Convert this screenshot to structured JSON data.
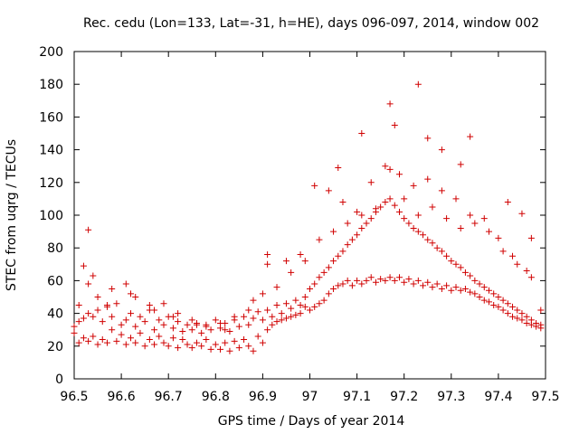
{
  "chart_data": {
    "type": "scatter",
    "title": "Rec. cedu (Lon=133, Lat=-31, h=HE), days 096-097, 2014, window 002",
    "xlabel": "GPS time / Days of year 2014",
    "ylabel": "STEC from uqrg / TECUs",
    "xlim": [
      96.5,
      97.5
    ],
    "ylim": [
      0,
      200
    ],
    "xticks": [
      "96.5",
      "96.6",
      "96.7",
      "96.8",
      "96.9",
      "97",
      "97.1",
      "97.2",
      "97.3",
      "97.4",
      "97.5"
    ],
    "yticks": [
      "0",
      "20",
      "40",
      "60",
      "80",
      "100",
      "120",
      "140",
      "160",
      "180",
      "200"
    ],
    "grid": false,
    "marker": "+",
    "color": "#d00000",
    "series": [
      {
        "name": "STEC",
        "points": [
          [
            96.5,
            32
          ],
          [
            96.5,
            28
          ],
          [
            96.51,
            35
          ],
          [
            96.51,
            22
          ],
          [
            96.52,
            37
          ],
          [
            96.52,
            25
          ],
          [
            96.53,
            40
          ],
          [
            96.53,
            23
          ],
          [
            96.54,
            38
          ],
          [
            96.54,
            26
          ],
          [
            96.55,
            42
          ],
          [
            96.55,
            21
          ],
          [
            96.56,
            35
          ],
          [
            96.56,
            24
          ],
          [
            96.57,
            44
          ],
          [
            96.57,
            22
          ],
          [
            96.58,
            38
          ],
          [
            96.58,
            30
          ],
          [
            96.59,
            46
          ],
          [
            96.59,
            23
          ],
          [
            96.6,
            33
          ],
          [
            96.6,
            27
          ],
          [
            96.61,
            36
          ],
          [
            96.61,
            21
          ],
          [
            96.62,
            40
          ],
          [
            96.62,
            25
          ],
          [
            96.63,
            32
          ],
          [
            96.63,
            22
          ],
          [
            96.64,
            38
          ],
          [
            96.64,
            28
          ],
          [
            96.65,
            35
          ],
          [
            96.65,
            20
          ],
          [
            96.66,
            42
          ],
          [
            96.66,
            24
          ],
          [
            96.67,
            30
          ],
          [
            96.67,
            21
          ],
          [
            96.68,
            36
          ],
          [
            96.68,
            26
          ],
          [
            96.69,
            33
          ],
          [
            96.69,
            22
          ],
          [
            96.7,
            38
          ],
          [
            96.7,
            20
          ],
          [
            96.71,
            31
          ],
          [
            96.71,
            25
          ],
          [
            96.72,
            35
          ],
          [
            96.72,
            19
          ],
          [
            96.73,
            29
          ],
          [
            96.73,
            24
          ],
          [
            96.74,
            33
          ],
          [
            96.74,
            21
          ],
          [
            96.75,
            30
          ],
          [
            96.75,
            19
          ],
          [
            96.76,
            34
          ],
          [
            96.76,
            22
          ],
          [
            96.77,
            28
          ],
          [
            96.77,
            20
          ],
          [
            96.78,
            33
          ],
          [
            96.78,
            24
          ],
          [
            96.79,
            30
          ],
          [
            96.79,
            18
          ],
          [
            96.8,
            36
          ],
          [
            96.8,
            21
          ],
          [
            96.81,
            31
          ],
          [
            96.81,
            18
          ],
          [
            96.82,
            34
          ],
          [
            96.82,
            22
          ],
          [
            96.83,
            29
          ],
          [
            96.83,
            17
          ],
          [
            96.84,
            36
          ],
          [
            96.84,
            23
          ],
          [
            96.85,
            32
          ],
          [
            96.85,
            19
          ],
          [
            96.86,
            38
          ],
          [
            96.86,
            24
          ],
          [
            96.87,
            33
          ],
          [
            96.87,
            20
          ],
          [
            96.88,
            37
          ],
          [
            96.88,
            17
          ],
          [
            96.89,
            41
          ],
          [
            96.89,
            26
          ],
          [
            96.9,
            36
          ],
          [
            96.9,
            22
          ],
          [
            96.91,
            42
          ],
          [
            96.91,
            30
          ],
          [
            96.92,
            38
          ],
          [
            96.92,
            33
          ],
          [
            96.93,
            45
          ],
          [
            96.93,
            35
          ],
          [
            96.94,
            40
          ],
          [
            96.94,
            36
          ],
          [
            96.95,
            46
          ],
          [
            96.95,
            37
          ],
          [
            96.96,
            43
          ],
          [
            96.96,
            38
          ],
          [
            96.97,
            48
          ],
          [
            96.97,
            39
          ],
          [
            96.98,
            45
          ],
          [
            96.98,
            40
          ],
          [
            96.99,
            50
          ],
          [
            96.99,
            44
          ],
          [
            97.0,
            55
          ],
          [
            97.0,
            42
          ],
          [
            97.01,
            58
          ],
          [
            97.01,
            44
          ],
          [
            97.02,
            62
          ],
          [
            97.02,
            46
          ],
          [
            97.03,
            65
          ],
          [
            97.03,
            48
          ],
          [
            97.04,
            68
          ],
          [
            97.04,
            52
          ],
          [
            97.05,
            72
          ],
          [
            97.05,
            55
          ],
          [
            97.06,
            75
          ],
          [
            97.06,
            57
          ],
          [
            97.07,
            78
          ],
          [
            97.07,
            58
          ],
          [
            97.08,
            82
          ],
          [
            97.08,
            60
          ],
          [
            97.09,
            85
          ],
          [
            97.09,
            57
          ],
          [
            97.1,
            88
          ],
          [
            97.1,
            60
          ],
          [
            97.11,
            92
          ],
          [
            97.11,
            58
          ],
          [
            97.12,
            95
          ],
          [
            97.12,
            60
          ],
          [
            97.13,
            98
          ],
          [
            97.13,
            62
          ],
          [
            97.14,
            102
          ],
          [
            97.14,
            59
          ],
          [
            97.15,
            105
          ],
          [
            97.15,
            61
          ],
          [
            97.16,
            108
          ],
          [
            97.16,
            60
          ],
          [
            97.17,
            110
          ],
          [
            97.17,
            62
          ],
          [
            97.18,
            106
          ],
          [
            97.18,
            60
          ],
          [
            97.19,
            102
          ],
          [
            97.19,
            62
          ],
          [
            97.2,
            98
          ],
          [
            97.2,
            59
          ],
          [
            97.21,
            95
          ],
          [
            97.21,
            61
          ],
          [
            97.22,
            92
          ],
          [
            97.22,
            58
          ],
          [
            97.23,
            90
          ],
          [
            97.23,
            60
          ],
          [
            97.24,
            88
          ],
          [
            97.24,
            57
          ],
          [
            97.25,
            85
          ],
          [
            97.25,
            59
          ],
          [
            97.26,
            83
          ],
          [
            97.26,
            56
          ],
          [
            97.27,
            80
          ],
          [
            97.27,
            58
          ],
          [
            97.28,
            78
          ],
          [
            97.28,
            55
          ],
          [
            97.29,
            75
          ],
          [
            97.29,
            57
          ],
          [
            97.3,
            72
          ],
          [
            97.3,
            54
          ],
          [
            97.31,
            70
          ],
          [
            97.31,
            56
          ],
          [
            97.32,
            68
          ],
          [
            97.32,
            54
          ],
          [
            97.33,
            65
          ],
          [
            97.33,
            55
          ],
          [
            97.34,
            63
          ],
          [
            97.34,
            53
          ],
          [
            97.35,
            60
          ],
          [
            97.35,
            52
          ],
          [
            97.36,
            58
          ],
          [
            97.36,
            50
          ],
          [
            97.37,
            56
          ],
          [
            97.37,
            48
          ],
          [
            97.38,
            54
          ],
          [
            97.38,
            47
          ],
          [
            97.39,
            52
          ],
          [
            97.39,
            45
          ],
          [
            97.4,
            50
          ],
          [
            97.4,
            44
          ],
          [
            97.41,
            48
          ],
          [
            97.41,
            42
          ],
          [
            97.42,
            46
          ],
          [
            97.42,
            40
          ],
          [
            97.43,
            44
          ],
          [
            97.43,
            38
          ],
          [
            97.44,
            42
          ],
          [
            97.44,
            37
          ],
          [
            97.45,
            40
          ],
          [
            97.45,
            36
          ],
          [
            97.46,
            38
          ],
          [
            97.46,
            34
          ],
          [
            97.47,
            36
          ],
          [
            97.47,
            33
          ],
          [
            97.48,
            34
          ],
          [
            97.48,
            32
          ],
          [
            97.49,
            33
          ],
          [
            97.49,
            31
          ],
          [
            96.51,
            45
          ],
          [
            96.53,
            58
          ],
          [
            96.55,
            50
          ],
          [
            96.58,
            55
          ],
          [
            96.61,
            58
          ],
          [
            96.63,
            50
          ],
          [
            96.66,
            45
          ],
          [
            96.69,
            46
          ],
          [
            96.72,
            40
          ],
          [
            96.75,
            36
          ],
          [
            96.78,
            32
          ],
          [
            96.81,
            34
          ],
          [
            96.84,
            38
          ],
          [
            96.87,
            42
          ],
          [
            96.9,
            52
          ],
          [
            96.93,
            56
          ],
          [
            96.96,
            65
          ],
          [
            96.99,
            72
          ],
          [
            97.02,
            85
          ],
          [
            97.05,
            90
          ],
          [
            97.08,
            95
          ],
          [
            97.11,
            100
          ],
          [
            97.14,
            104
          ],
          [
            97.17,
            128
          ],
          [
            97.2,
            110
          ],
          [
            97.23,
            100
          ],
          [
            97.26,
            105
          ],
          [
            97.29,
            98
          ],
          [
            97.32,
            92
          ],
          [
            97.35,
            95
          ],
          [
            97.38,
            90
          ],
          [
            97.41,
            78
          ],
          [
            97.44,
            70
          ],
          [
            97.47,
            62
          ],
          [
            96.52,
            69
          ],
          [
            96.54,
            63
          ],
          [
            96.57,
            45
          ],
          [
            96.62,
            52
          ],
          [
            96.67,
            42
          ],
          [
            96.71,
            38
          ],
          [
            96.76,
            33
          ],
          [
            96.82,
            30
          ],
          [
            96.88,
            48
          ],
          [
            96.91,
            70
          ],
          [
            96.95,
            72
          ],
          [
            96.98,
            76
          ],
          [
            97.01,
            118
          ],
          [
            97.04,
            115
          ],
          [
            97.07,
            108
          ],
          [
            97.1,
            102
          ],
          [
            97.13,
            120
          ],
          [
            97.16,
            130
          ],
          [
            97.19,
            125
          ],
          [
            97.22,
            118
          ],
          [
            97.25,
            122
          ],
          [
            97.28,
            115
          ],
          [
            97.31,
            110
          ],
          [
            97.34,
            100
          ],
          [
            97.37,
            98
          ],
          [
            97.4,
            86
          ],
          [
            97.43,
            75
          ],
          [
            97.46,
            66
          ],
          [
            97.49,
            42
          ],
          [
            96.53,
            91
          ],
          [
            96.91,
            76
          ],
          [
            97.06,
            129
          ],
          [
            97.11,
            150
          ],
          [
            97.17,
            168
          ],
          [
            97.18,
            155
          ],
          [
            97.23,
            180
          ],
          [
            97.25,
            147
          ],
          [
            97.28,
            140
          ],
          [
            97.32,
            131
          ],
          [
            97.34,
            148
          ],
          [
            97.42,
            108
          ],
          [
            97.45,
            101
          ],
          [
            97.47,
            86
          ]
        ]
      }
    ]
  }
}
